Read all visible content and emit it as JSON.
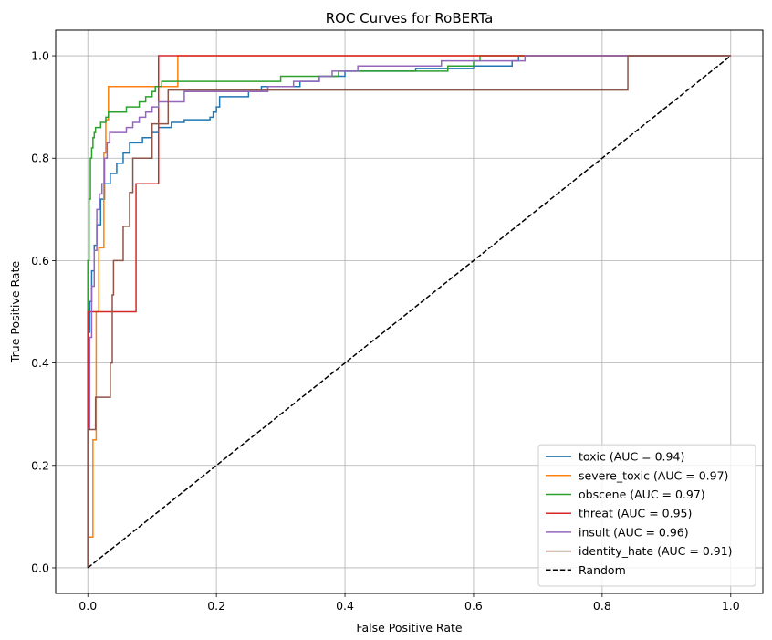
{
  "chart_data": {
    "type": "line",
    "title": "ROC Curves for RoBERTa",
    "xlabel": "False Positive Rate",
    "ylabel": "True Positive Rate",
    "xlim": [
      -0.05,
      1.05
    ],
    "ylim": [
      -0.05,
      1.05
    ],
    "xticks": [
      "0.0",
      "0.2",
      "0.4",
      "0.6",
      "0.8",
      "1.0"
    ],
    "yticks": [
      "0.0",
      "0.2",
      "0.4",
      "0.6",
      "0.8",
      "1.0"
    ],
    "grid": true,
    "legend_position": "lower right",
    "series": [
      {
        "name": "toxic (AUC = 0.94)",
        "color": "#1f77b4",
        "style": "solid",
        "points": [
          [
            0,
            0
          ],
          [
            0,
            0.46
          ],
          [
            0.003,
            0.46
          ],
          [
            0.003,
            0.52
          ],
          [
            0.006,
            0.52
          ],
          [
            0.006,
            0.58
          ],
          [
            0.01,
            0.58
          ],
          [
            0.01,
            0.63
          ],
          [
            0.014,
            0.63
          ],
          [
            0.014,
            0.67
          ],
          [
            0.02,
            0.67
          ],
          [
            0.02,
            0.72
          ],
          [
            0.026,
            0.72
          ],
          [
            0.026,
            0.75
          ],
          [
            0.035,
            0.75
          ],
          [
            0.035,
            0.77
          ],
          [
            0.045,
            0.77
          ],
          [
            0.045,
            0.79
          ],
          [
            0.055,
            0.79
          ],
          [
            0.055,
            0.81
          ],
          [
            0.065,
            0.81
          ],
          [
            0.065,
            0.83
          ],
          [
            0.085,
            0.83
          ],
          [
            0.085,
            0.84
          ],
          [
            0.1,
            0.84
          ],
          [
            0.1,
            0.85
          ],
          [
            0.11,
            0.85
          ],
          [
            0.11,
            0.86
          ],
          [
            0.13,
            0.86
          ],
          [
            0.13,
            0.87
          ],
          [
            0.15,
            0.87
          ],
          [
            0.15,
            0.875
          ],
          [
            0.19,
            0.875
          ],
          [
            0.19,
            0.88
          ],
          [
            0.195,
            0.88
          ],
          [
            0.195,
            0.89
          ],
          [
            0.2,
            0.89
          ],
          [
            0.2,
            0.9
          ],
          [
            0.205,
            0.9
          ],
          [
            0.205,
            0.92
          ],
          [
            0.25,
            0.92
          ],
          [
            0.25,
            0.93
          ],
          [
            0.27,
            0.93
          ],
          [
            0.27,
            0.94
          ],
          [
            0.33,
            0.94
          ],
          [
            0.33,
            0.95
          ],
          [
            0.36,
            0.95
          ],
          [
            0.36,
            0.96
          ],
          [
            0.4,
            0.96
          ],
          [
            0.4,
            0.97
          ],
          [
            0.51,
            0.97
          ],
          [
            0.51,
            0.975
          ],
          [
            0.6,
            0.975
          ],
          [
            0.6,
            0.98
          ],
          [
            0.66,
            0.98
          ],
          [
            0.66,
            0.99
          ],
          [
            0.67,
            0.99
          ],
          [
            0.67,
            1.0
          ],
          [
            1.0,
            1.0
          ]
        ]
      },
      {
        "name": "severe_toxic (AUC = 0.97)",
        "color": "#ff7f0e",
        "style": "solid",
        "points": [
          [
            0,
            0
          ],
          [
            0,
            0.06
          ],
          [
            0.008,
            0.06
          ],
          [
            0.008,
            0.25
          ],
          [
            0.013,
            0.25
          ],
          [
            0.013,
            0.5
          ],
          [
            0.017,
            0.5
          ],
          [
            0.017,
            0.625
          ],
          [
            0.025,
            0.625
          ],
          [
            0.025,
            0.81
          ],
          [
            0.028,
            0.81
          ],
          [
            0.028,
            0.875
          ],
          [
            0.032,
            0.875
          ],
          [
            0.032,
            0.94
          ],
          [
            0.14,
            0.94
          ],
          [
            0.14,
            1.0
          ],
          [
            1.0,
            1.0
          ]
        ]
      },
      {
        "name": "obscene (AUC = 0.97)",
        "color": "#2ca02c",
        "style": "solid",
        "points": [
          [
            0,
            0
          ],
          [
            0,
            0.6
          ],
          [
            0.002,
            0.6
          ],
          [
            0.002,
            0.72
          ],
          [
            0.004,
            0.72
          ],
          [
            0.004,
            0.8
          ],
          [
            0.006,
            0.8
          ],
          [
            0.006,
            0.82
          ],
          [
            0.008,
            0.82
          ],
          [
            0.008,
            0.84
          ],
          [
            0.01,
            0.84
          ],
          [
            0.01,
            0.85
          ],
          [
            0.012,
            0.85
          ],
          [
            0.012,
            0.86
          ],
          [
            0.02,
            0.86
          ],
          [
            0.02,
            0.87
          ],
          [
            0.028,
            0.87
          ],
          [
            0.028,
            0.88
          ],
          [
            0.032,
            0.88
          ],
          [
            0.032,
            0.89
          ],
          [
            0.06,
            0.89
          ],
          [
            0.06,
            0.9
          ],
          [
            0.08,
            0.9
          ],
          [
            0.08,
            0.91
          ],
          [
            0.09,
            0.91
          ],
          [
            0.09,
            0.92
          ],
          [
            0.1,
            0.92
          ],
          [
            0.1,
            0.93
          ],
          [
            0.105,
            0.93
          ],
          [
            0.105,
            0.94
          ],
          [
            0.115,
            0.94
          ],
          [
            0.115,
            0.95
          ],
          [
            0.3,
            0.95
          ],
          [
            0.3,
            0.96
          ],
          [
            0.39,
            0.96
          ],
          [
            0.39,
            0.97
          ],
          [
            0.56,
            0.97
          ],
          [
            0.56,
            0.98
          ],
          [
            0.6,
            0.98
          ],
          [
            0.6,
            0.99
          ],
          [
            0.61,
            0.99
          ],
          [
            0.61,
            1.0
          ],
          [
            1.0,
            1.0
          ]
        ]
      },
      {
        "name": "threat (AUC = 0.95)",
        "color": "#d62728",
        "style": "solid",
        "points": [
          [
            0,
            0
          ],
          [
            0,
            0.5
          ],
          [
            0.075,
            0.5
          ],
          [
            0.075,
            0.75
          ],
          [
            0.11,
            0.75
          ],
          [
            0.11,
            1.0
          ],
          [
            1.0,
            1.0
          ]
        ]
      },
      {
        "name": "insult (AUC = 0.96)",
        "color": "#9467bd",
        "style": "solid",
        "points": [
          [
            0,
            0
          ],
          [
            0,
            0.27
          ],
          [
            0.003,
            0.27
          ],
          [
            0.003,
            0.45
          ],
          [
            0.006,
            0.45
          ],
          [
            0.006,
            0.55
          ],
          [
            0.01,
            0.55
          ],
          [
            0.01,
            0.62
          ],
          [
            0.014,
            0.62
          ],
          [
            0.014,
            0.7
          ],
          [
            0.018,
            0.7
          ],
          [
            0.018,
            0.73
          ],
          [
            0.022,
            0.73
          ],
          [
            0.022,
            0.75
          ],
          [
            0.026,
            0.75
          ],
          [
            0.026,
            0.8
          ],
          [
            0.03,
            0.8
          ],
          [
            0.03,
            0.83
          ],
          [
            0.034,
            0.83
          ],
          [
            0.034,
            0.85
          ],
          [
            0.06,
            0.85
          ],
          [
            0.06,
            0.86
          ],
          [
            0.07,
            0.86
          ],
          [
            0.07,
            0.87
          ],
          [
            0.08,
            0.87
          ],
          [
            0.08,
            0.88
          ],
          [
            0.09,
            0.88
          ],
          [
            0.09,
            0.89
          ],
          [
            0.1,
            0.89
          ],
          [
            0.1,
            0.9
          ],
          [
            0.11,
            0.9
          ],
          [
            0.11,
            0.91
          ],
          [
            0.15,
            0.91
          ],
          [
            0.15,
            0.93
          ],
          [
            0.28,
            0.93
          ],
          [
            0.28,
            0.94
          ],
          [
            0.32,
            0.94
          ],
          [
            0.32,
            0.95
          ],
          [
            0.36,
            0.95
          ],
          [
            0.36,
            0.96
          ],
          [
            0.38,
            0.96
          ],
          [
            0.38,
            0.97
          ],
          [
            0.42,
            0.97
          ],
          [
            0.42,
            0.98
          ],
          [
            0.55,
            0.98
          ],
          [
            0.55,
            0.99
          ],
          [
            0.68,
            0.99
          ],
          [
            0.68,
            1.0
          ],
          [
            1.0,
            1.0
          ]
        ]
      },
      {
        "name": "identity_hate (AUC = 0.91)",
        "color": "#8c564b",
        "style": "solid",
        "points": [
          [
            0,
            0
          ],
          [
            0,
            0.27
          ],
          [
            0.012,
            0.27
          ],
          [
            0.012,
            0.333
          ],
          [
            0.035,
            0.333
          ],
          [
            0.035,
            0.4
          ],
          [
            0.038,
            0.4
          ],
          [
            0.038,
            0.533
          ],
          [
            0.04,
            0.533
          ],
          [
            0.04,
            0.6
          ],
          [
            0.055,
            0.6
          ],
          [
            0.055,
            0.667
          ],
          [
            0.065,
            0.667
          ],
          [
            0.065,
            0.733
          ],
          [
            0.07,
            0.733
          ],
          [
            0.07,
            0.8
          ],
          [
            0.1,
            0.8
          ],
          [
            0.1,
            0.867
          ],
          [
            0.125,
            0.867
          ],
          [
            0.125,
            0.933
          ],
          [
            0.84,
            0.933
          ],
          [
            0.84,
            1.0
          ],
          [
            1.0,
            1.0
          ]
        ]
      },
      {
        "name": "Random",
        "color": "#000000",
        "style": "dashed",
        "points": [
          [
            0,
            0
          ],
          [
            1,
            1
          ]
        ]
      }
    ]
  }
}
